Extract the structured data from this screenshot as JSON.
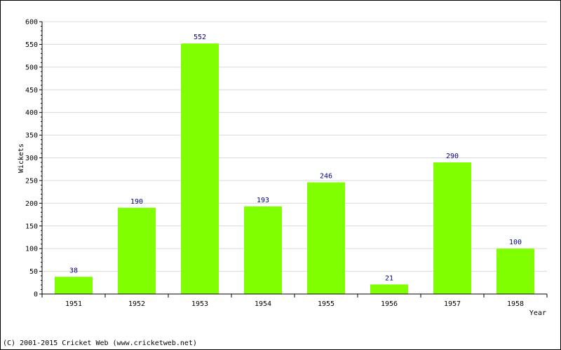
{
  "chart_data": {
    "type": "bar",
    "categories": [
      "1951",
      "1952",
      "1953",
      "1954",
      "1955",
      "1956",
      "1957",
      "1958"
    ],
    "values": [
      38,
      190,
      552,
      193,
      246,
      21,
      290,
      100
    ],
    "data_labels": [
      "38",
      "190",
      "552",
      "193",
      "246",
      "21",
      "290",
      "100"
    ],
    "title": "",
    "xlabel": "Year",
    "ylabel": "Wickets",
    "ylim": [
      0,
      600
    ],
    "yticks": [
      "0",
      "50",
      "100",
      "150",
      "200",
      "250",
      "300",
      "350",
      "400",
      "450",
      "500",
      "550",
      "600"
    ],
    "grid": true,
    "legend": "none",
    "colors": {
      "bar": "#7fff00",
      "grid": "#d9d9d9",
      "axis": "#000000",
      "data_label": "#000080"
    }
  },
  "footer": {
    "copyright": "(C) 2001-2015 Cricket Web (www.cricketweb.net)"
  }
}
